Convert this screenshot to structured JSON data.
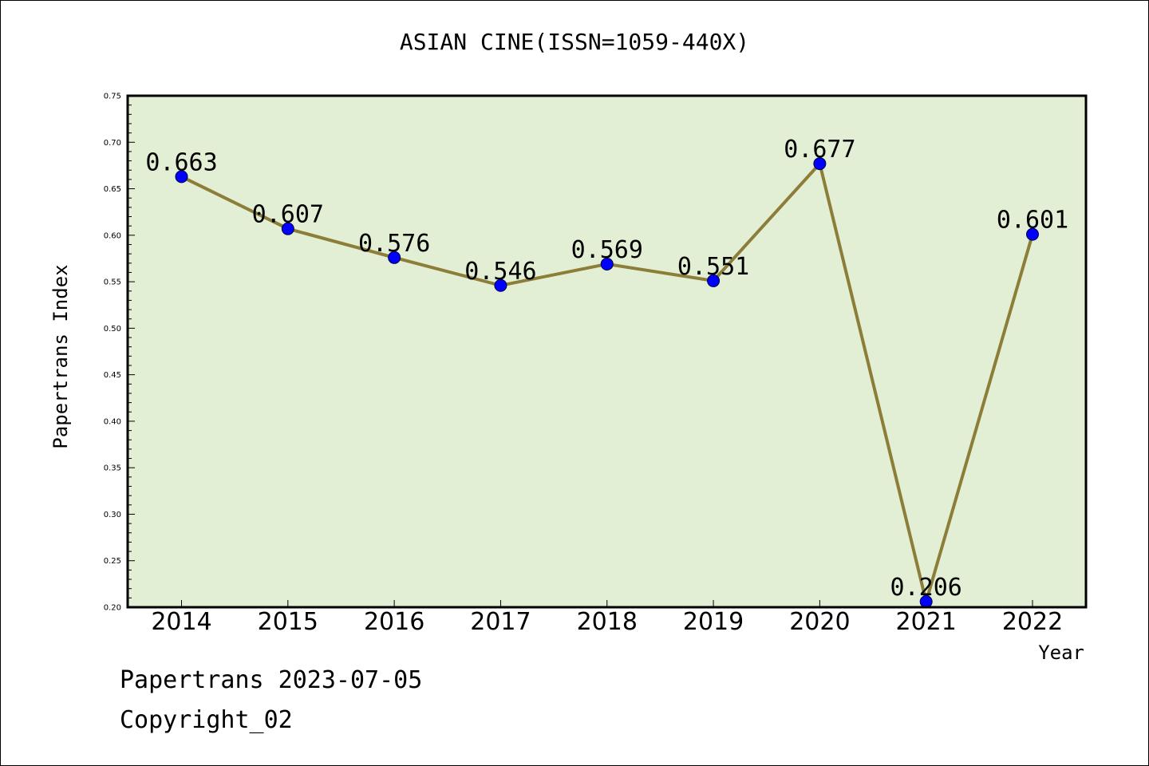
{
  "chart_data": {
    "type": "line",
    "title": "ASIAN CINE(ISSN=1059-440X)",
    "xlabel": "Year",
    "ylabel": "Papertrans Index",
    "categories": [
      "2014",
      "2015",
      "2016",
      "2017",
      "2018",
      "2019",
      "2020",
      "2021",
      "2022"
    ],
    "series": [
      {
        "values": [
          0.663,
          0.607,
          0.576,
          0.546,
          0.569,
          0.551,
          0.677,
          0.206,
          0.601
        ]
      }
    ],
    "data_labels": [
      "0.663",
      "0.607",
      "0.576",
      "0.546",
      "0.569",
      "0.551",
      "0.677",
      "0.206",
      "0.601"
    ],
    "ylim": [
      0.2,
      0.75
    ],
    "yticks": [
      "0.20",
      "0.25",
      "0.30",
      "0.35",
      "0.40",
      "0.45",
      "0.50",
      "0.55",
      "0.60",
      "0.65",
      "0.70",
      "0.75"
    ],
    "grid": false,
    "colors": {
      "plot_background": "#e2efd4",
      "line": "#8c7d38",
      "marker": "#0000ff"
    }
  },
  "footer": {
    "date_text": "Papertrans 2023-07-05",
    "copyright_text": "Copyright_02"
  }
}
